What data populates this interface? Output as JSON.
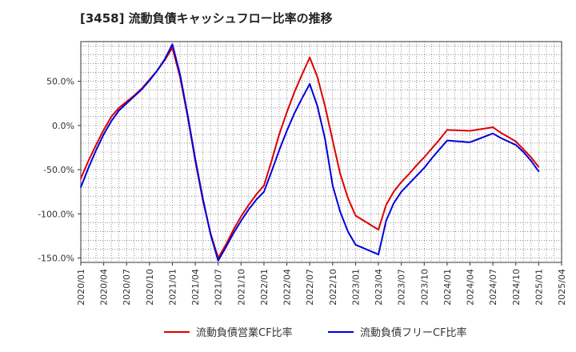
{
  "chart_data": {
    "type": "line",
    "title": "[3458]  流動負債キャッシュフロー比率の推移",
    "xlabel": "",
    "ylabel": "",
    "x": [
      "2020/01",
      "2020/04",
      "2020/07",
      "2020/10",
      "2021/01",
      "2021/04",
      "2021/07",
      "2021/10",
      "2022/01",
      "2022/04",
      "2022/07",
      "2022/10",
      "2023/01",
      "2023/04",
      "2023/07",
      "2023/10",
      "2024/01",
      "2024/04",
      "2024/07",
      "2024/10",
      "2025/01",
      "2025/04"
    ],
    "x_months": [
      "2020/01",
      "2020/02",
      "2020/03",
      "2020/04",
      "2020/05",
      "2020/06",
      "2020/07",
      "2020/08",
      "2020/09",
      "2020/10",
      "2020/11",
      "2020/12",
      "2021/01",
      "2021/02",
      "2021/03",
      "2021/04",
      "2021/05",
      "2021/06",
      "2021/07",
      "2021/08",
      "2021/09",
      "2021/10",
      "2021/11",
      "2021/12",
      "2022/01",
      "2022/02",
      "2022/03",
      "2022/04",
      "2022/05",
      "2022/06",
      "2022/07",
      "2022/08",
      "2022/09",
      "2022/10",
      "2022/11",
      "2022/12",
      "2023/01",
      "2023/02",
      "2023/03",
      "2023/04",
      "2023/05",
      "2023/06",
      "2023/07",
      "2023/08",
      "2023/09",
      "2023/10",
      "2023/11",
      "2023/12",
      "2024/01",
      "2024/02",
      "2024/03",
      "2024/04",
      "2024/05",
      "2024/06",
      "2024/07",
      "2024/08",
      "2024/09",
      "2024/10",
      "2024/11",
      "2024/12",
      "2025/01",
      "2025/02",
      "2025/03",
      "2025/04"
    ],
    "ylim": [
      -155,
      95
    ],
    "yticks": [
      50,
      0,
      -50,
      -100,
      -150
    ],
    "ytick_labels": [
      "50.0%",
      "0.0%",
      "-50.0%",
      "-100.0%",
      "-150.0%"
    ],
    "grid": true,
    "legend_position": "bottom",
    "series": [
      {
        "name": "流動負債営業CF比率",
        "color": "#dd0000",
        "points": [
          [
            "2020/01",
            -60
          ],
          [
            "2020/02",
            -40
          ],
          [
            "2020/03",
            -22
          ],
          [
            "2020/04",
            -5
          ],
          [
            "2020/05",
            10
          ],
          [
            "2020/06",
            20
          ],
          [
            "2020/07",
            27
          ],
          [
            "2020/08",
            34
          ],
          [
            "2020/09",
            42
          ],
          [
            "2020/10",
            52
          ],
          [
            "2020/11",
            62
          ],
          [
            "2020/12",
            74
          ],
          [
            "2021/01",
            88
          ],
          [
            "2021/02",
            55
          ],
          [
            "2021/03",
            10
          ],
          [
            "2021/04",
            -40
          ],
          [
            "2021/05",
            -85
          ],
          [
            "2021/06",
            -122
          ],
          [
            "2021/07",
            -150
          ],
          [
            "2021/08",
            -135
          ],
          [
            "2021/09",
            -118
          ],
          [
            "2021/10",
            -103
          ],
          [
            "2021/11",
            -90
          ],
          [
            "2021/12",
            -78
          ],
          [
            "2022/01",
            -68
          ],
          [
            "2022/02",
            -40
          ],
          [
            "2022/03",
            -10
          ],
          [
            "2022/04",
            15
          ],
          [
            "2022/05",
            38
          ],
          [
            "2022/06",
            58
          ],
          [
            "2022/07",
            77
          ],
          [
            "2022/08",
            55
          ],
          [
            "2022/09",
            22
          ],
          [
            "2022/10",
            -17
          ],
          [
            "2022/11",
            -55
          ],
          [
            "2022/12",
            -82
          ],
          [
            "2023/01",
            -102
          ],
          [
            "2023/04",
            -118
          ],
          [
            "2023/05",
            -90
          ],
          [
            "2023/06",
            -75
          ],
          [
            "2023/07",
            -64
          ],
          [
            "2023/08",
            -55
          ],
          [
            "2023/09",
            -45
          ],
          [
            "2023/10",
            -36
          ],
          [
            "2023/11",
            -26
          ],
          [
            "2023/12",
            -16
          ],
          [
            "2024/01",
            -5
          ],
          [
            "2024/04",
            -6
          ],
          [
            "2024/07",
            -2
          ],
          [
            "2024/08",
            -8
          ],
          [
            "2024/09",
            -13
          ],
          [
            "2024/10",
            -18
          ],
          [
            "2024/11",
            -27
          ],
          [
            "2024/12",
            -36
          ],
          [
            "2025/01",
            -47
          ]
        ]
      },
      {
        "name": "流動負債フリーCF比率",
        "color": "#0000dd",
        "points": [
          [
            "2020/01",
            -70
          ],
          [
            "2020/02",
            -48
          ],
          [
            "2020/03",
            -28
          ],
          [
            "2020/04",
            -10
          ],
          [
            "2020/05",
            5
          ],
          [
            "2020/06",
            17
          ],
          [
            "2020/07",
            25
          ],
          [
            "2020/08",
            33
          ],
          [
            "2020/09",
            41
          ],
          [
            "2020/10",
            51
          ],
          [
            "2020/11",
            62
          ],
          [
            "2020/12",
            75
          ],
          [
            "2021/01",
            92
          ],
          [
            "2021/02",
            58
          ],
          [
            "2021/03",
            12
          ],
          [
            "2021/04",
            -38
          ],
          [
            "2021/05",
            -83
          ],
          [
            "2021/06",
            -123
          ],
          [
            "2021/07",
            -153
          ],
          [
            "2021/08",
            -138
          ],
          [
            "2021/09",
            -122
          ],
          [
            "2021/10",
            -108
          ],
          [
            "2021/11",
            -95
          ],
          [
            "2021/12",
            -84
          ],
          [
            "2022/01",
            -75
          ],
          [
            "2022/02",
            -52
          ],
          [
            "2022/03",
            -28
          ],
          [
            "2022/04",
            -6
          ],
          [
            "2022/05",
            14
          ],
          [
            "2022/06",
            31
          ],
          [
            "2022/07",
            47
          ],
          [
            "2022/08",
            22
          ],
          [
            "2022/09",
            -15
          ],
          [
            "2022/10",
            -68
          ],
          [
            "2022/11",
            -98
          ],
          [
            "2022/12",
            -120
          ],
          [
            "2023/01",
            -135
          ],
          [
            "2023/04",
            -146
          ],
          [
            "2023/05",
            -108
          ],
          [
            "2023/06",
            -88
          ],
          [
            "2023/07",
            -75
          ],
          [
            "2023/08",
            -66
          ],
          [
            "2023/09",
            -57
          ],
          [
            "2023/10",
            -48
          ],
          [
            "2023/11",
            -37
          ],
          [
            "2023/12",
            -27
          ],
          [
            "2024/01",
            -17
          ],
          [
            "2024/04",
            -19
          ],
          [
            "2024/07",
            -9
          ],
          [
            "2024/08",
            -14
          ],
          [
            "2024/09",
            -18
          ],
          [
            "2024/10",
            -22
          ],
          [
            "2024/11",
            -30
          ],
          [
            "2024/12",
            -40
          ],
          [
            "2025/01",
            -52
          ]
        ]
      }
    ]
  }
}
